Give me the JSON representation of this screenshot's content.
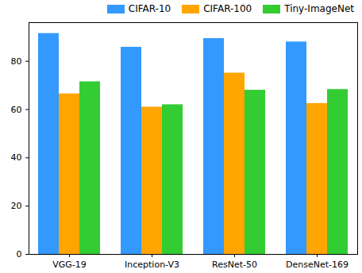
{
  "chart_data": {
    "type": "bar",
    "categories": [
      "VGG-19",
      "Inception-V3",
      "ResNet-50",
      "DenseNet-169"
    ],
    "series": [
      {
        "name": "CIFAR-10",
        "color": "#3399ff",
        "values": [
          91.5,
          85.8,
          89.4,
          88.0
        ]
      },
      {
        "name": "CIFAR-100",
        "color": "#ffa500",
        "values": [
          66.5,
          61.0,
          75.1,
          62.5
        ]
      },
      {
        "name": "Tiny-ImageNet",
        "color": "#33cc33",
        "values": [
          71.5,
          62.0,
          68.0,
          68.3
        ]
      }
    ],
    "ylim": [
      0,
      96
    ],
    "yticks": [
      0,
      20,
      40,
      60,
      80
    ],
    "legend": "upper right",
    "grid": false
  }
}
